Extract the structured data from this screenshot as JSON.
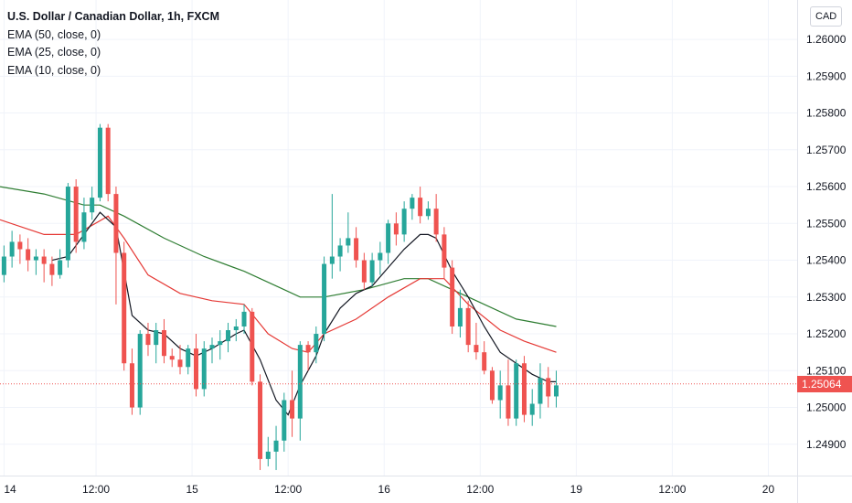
{
  "chart_data": {
    "type": "candlestick",
    "title": "U.S. Dollar / Canadian Dollar, 1h, FXCM",
    "indicators": [
      {
        "name": "EMA (50, close, 0)",
        "color": "#2e7d32"
      },
      {
        "name": "EMA (25, close, 0)",
        "color": "#e53935"
      },
      {
        "name": "EMA (10, close, 0)",
        "color": "#131722"
      }
    ],
    "currency": "CAD",
    "last_price": "1.25064",
    "ylim": [
      1.24815,
      1.26107
    ],
    "y_ticks": [
      "1.26000",
      "1.25900",
      "1.25800",
      "1.25700",
      "1.25600",
      "1.25500",
      "1.25400",
      "1.25300",
      "1.25200",
      "1.25100",
      "1.25000",
      "1.24900"
    ],
    "x_ticks": [
      {
        "label": "14",
        "x": 0
      },
      {
        "label": "12:00",
        "x": 11.5
      },
      {
        "label": "15",
        "x": 23.5
      },
      {
        "label": "12:00",
        "x": 35.5
      },
      {
        "label": "16",
        "x": 47.5
      },
      {
        "label": "12:00",
        "x": 59.5
      },
      {
        "label": "19",
        "x": 71.5
      },
      {
        "label": "12:00",
        "x": 83.5
      },
      {
        "label": "20",
        "x": 95.5
      }
    ],
    "x_range": [
      -0.5,
      99.1
    ],
    "grid": true,
    "candles": [
      [
        1.2536,
        1.2544,
        1.2534,
        1.2541
      ],
      [
        1.2541,
        1.2548,
        1.2538,
        1.2545
      ],
      [
        1.2545,
        1.2547,
        1.2539,
        1.2543
      ],
      [
        1.2543,
        1.2546,
        1.2537,
        1.254
      ],
      [
        1.254,
        1.2543,
        1.2536,
        1.2541
      ],
      [
        1.2541,
        1.2543,
        1.2534,
        1.2539
      ],
      [
        1.2539,
        1.2541,
        1.2533,
        1.2536
      ],
      [
        1.2536,
        1.2543,
        1.2535,
        1.254
      ],
      [
        1.254,
        1.2561,
        1.2538,
        1.256
      ],
      [
        1.256,
        1.2562,
        1.2542,
        1.2545
      ],
      [
        1.2545,
        1.2557,
        1.2543,
        1.2553
      ],
      [
        1.2553,
        1.256,
        1.2551,
        1.2557
      ],
      [
        1.2557,
        1.2577,
        1.2556,
        1.2576
      ],
      [
        1.2576,
        1.2577,
        1.2556,
        1.2558
      ],
      [
        1.2558,
        1.256,
        1.2528,
        1.2542
      ],
      [
        1.2542,
        1.2545,
        1.251,
        1.2512
      ],
      [
        1.2512,
        1.2516,
        1.2498,
        1.25
      ],
      [
        1.25,
        1.2521,
        1.2498,
        1.252
      ],
      [
        1.252,
        1.2523,
        1.2514,
        1.2517
      ],
      [
        1.2517,
        1.2523,
        1.2512,
        1.2521
      ],
      [
        1.2521,
        1.2524,
        1.2512,
        1.2514
      ],
      [
        1.2514,
        1.2516,
        1.2511,
        1.2513
      ],
      [
        1.2513,
        1.2517,
        1.2509,
        1.2511
      ],
      [
        1.2511,
        1.2517,
        1.2509,
        1.2516
      ],
      [
        1.2516,
        1.252,
        1.2503,
        1.2505
      ],
      [
        1.2505,
        1.2518,
        1.2503,
        1.2516
      ],
      [
        1.2516,
        1.2519,
        1.2512,
        1.2517
      ],
      [
        1.2517,
        1.2521,
        1.2513,
        1.2518
      ],
      [
        1.2518,
        1.2523,
        1.2515,
        1.2521
      ],
      [
        1.2521,
        1.2524,
        1.2518,
        1.2522
      ],
      [
        1.2522,
        1.2528,
        1.252,
        1.2526
      ],
      [
        1.2526,
        1.2527,
        1.2506,
        1.2507
      ],
      [
        1.2507,
        1.2509,
        1.2483,
        1.2486
      ],
      [
        1.2486,
        1.2492,
        1.2484,
        1.2488
      ],
      [
        1.2488,
        1.2495,
        1.2483,
        1.2491
      ],
      [
        1.2491,
        1.2504,
        1.2488,
        1.2502
      ],
      [
        1.2502,
        1.251,
        1.2492,
        1.2497
      ],
      [
        1.2497,
        1.2518,
        1.2491,
        1.2517
      ],
      [
        1.2517,
        1.2518,
        1.251,
        1.2515
      ],
      [
        1.2515,
        1.2522,
        1.2512,
        1.252
      ],
      [
        1.252,
        1.2541,
        1.2518,
        1.2539
      ],
      [
        1.2539,
        1.2558,
        1.2535,
        1.2541
      ],
      [
        1.2541,
        1.2546,
        1.2537,
        1.2544
      ],
      [
        1.2544,
        1.2553,
        1.2542,
        1.2546
      ],
      [
        1.2546,
        1.2549,
        1.2538,
        1.254
      ],
      [
        1.254,
        1.2542,
        1.2532,
        1.2534
      ],
      [
        1.2534,
        1.2542,
        1.2533,
        1.254
      ],
      [
        1.254,
        1.2545,
        1.2536,
        1.2542
      ],
      [
        1.2542,
        1.2551,
        1.2539,
        1.255
      ],
      [
        1.255,
        1.2553,
        1.2544,
        1.2547
      ],
      [
        1.2547,
        1.2556,
        1.2545,
        1.2554
      ],
      [
        1.2554,
        1.2558,
        1.2551,
        1.2557
      ],
      [
        1.2557,
        1.256,
        1.255,
        1.2552
      ],
      [
        1.2552,
        1.2556,
        1.2551,
        1.2554
      ],
      [
        1.2554,
        1.2558,
        1.2545,
        1.2547
      ],
      [
        1.2547,
        1.2549,
        1.2535,
        1.2538
      ],
      [
        1.2538,
        1.254,
        1.252,
        1.2522
      ],
      [
        1.2522,
        1.2532,
        1.2519,
        1.2527
      ],
      [
        1.2527,
        1.2529,
        1.2515,
        1.2517
      ],
      [
        1.2517,
        1.2523,
        1.2513,
        1.2515
      ],
      [
        1.2515,
        1.2518,
        1.2509,
        1.251
      ],
      [
        1.251,
        1.2511,
        1.2501,
        1.2502
      ],
      [
        1.2502,
        1.251,
        1.2497,
        1.2506
      ],
      [
        1.2506,
        1.2513,
        1.2495,
        1.2497
      ],
      [
        1.2497,
        1.2513,
        1.2495,
        1.2512
      ],
      [
        1.2512,
        1.2514,
        1.2496,
        1.2498
      ],
      [
        1.2498,
        1.2505,
        1.2495,
        1.2501
      ],
      [
        1.2501,
        1.2512,
        1.2497,
        1.2508
      ],
      [
        1.2508,
        1.2511,
        1.25,
        1.2503
      ],
      [
        1.2503,
        1.251,
        1.25,
        1.2506
      ]
    ],
    "ema50": [
      [
        -0.5,
        1.256
      ],
      [
        5,
        1.2558
      ],
      [
        10,
        1.2555
      ],
      [
        12,
        1.2555
      ],
      [
        15,
        1.2552
      ],
      [
        20,
        1.2546
      ],
      [
        25,
        1.2541
      ],
      [
        30,
        1.2537
      ],
      [
        35,
        1.2532
      ],
      [
        37,
        1.253
      ],
      [
        40,
        1.253
      ],
      [
        45,
        1.2532
      ],
      [
        50,
        1.2535
      ],
      [
        53,
        1.2535
      ],
      [
        56,
        1.2532
      ],
      [
        60,
        1.2528
      ],
      [
        64,
        1.2524
      ],
      [
        69,
        1.2522
      ]
    ],
    "ema25": [
      [
        -0.5,
        1.2551
      ],
      [
        5,
        1.2547
      ],
      [
        9,
        1.2547
      ],
      [
        13,
        1.2552
      ],
      [
        15,
        1.2546
      ],
      [
        18,
        1.2536
      ],
      [
        22,
        1.2531
      ],
      [
        26,
        1.2529
      ],
      [
        30,
        1.2528
      ],
      [
        33,
        1.252
      ],
      [
        36,
        1.2516
      ],
      [
        38,
        1.2515
      ],
      [
        40,
        1.252
      ],
      [
        44,
        1.2524
      ],
      [
        48,
        1.253
      ],
      [
        52,
        1.2535
      ],
      [
        55,
        1.2535
      ],
      [
        58,
        1.2528
      ],
      [
        62,
        1.2521
      ],
      [
        65,
        1.2518
      ],
      [
        69,
        1.2515
      ]
    ],
    "ema10": [
      [
        6,
        1.254
      ],
      [
        8,
        1.2541
      ],
      [
        10,
        1.2547
      ],
      [
        12,
        1.2553
      ],
      [
        14,
        1.2549
      ],
      [
        15,
        1.2537
      ],
      [
        16,
        1.2525
      ],
      [
        18,
        1.2521
      ],
      [
        20,
        1.252
      ],
      [
        22,
        1.2516
      ],
      [
        24,
        1.2514
      ],
      [
        26,
        1.2516
      ],
      [
        29,
        1.252
      ],
      [
        30,
        1.2521
      ],
      [
        32,
        1.2513
      ],
      [
        34,
        1.2502
      ],
      [
        35.5,
        1.2498
      ],
      [
        37,
        1.2506
      ],
      [
        39,
        1.2514
      ],
      [
        40,
        1.252
      ],
      [
        42,
        1.2527
      ],
      [
        44,
        1.2531
      ],
      [
        46,
        1.2533
      ],
      [
        48,
        1.2538
      ],
      [
        50,
        1.2543
      ],
      [
        52,
        1.2547
      ],
      [
        53,
        1.2547
      ],
      [
        54,
        1.2546
      ],
      [
        56,
        1.2537
      ],
      [
        58,
        1.253
      ],
      [
        60,
        1.2522
      ],
      [
        62,
        1.2515
      ],
      [
        64,
        1.2512
      ],
      [
        66,
        1.2509
      ],
      [
        68,
        1.2507
      ],
      [
        69,
        1.2507
      ]
    ]
  }
}
